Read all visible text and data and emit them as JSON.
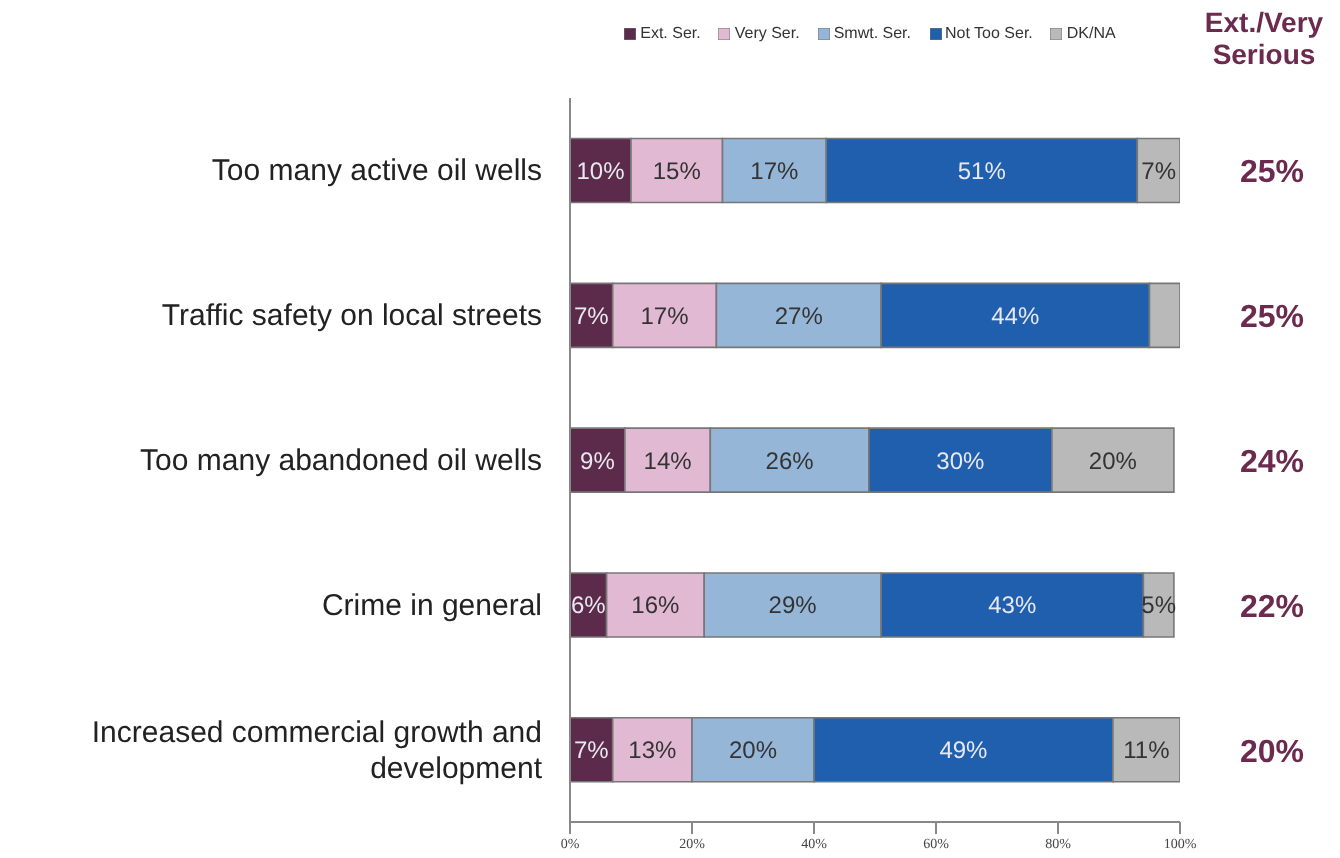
{
  "chart_data": {
    "type": "bar",
    "orientation": "horizontal",
    "stacked": true,
    "legend": "top",
    "grid": false,
    "categories": [
      "Too many active oil wells",
      "Traffic safety on local streets",
      "Too many abandoned oil wells",
      "Crime in general",
      "Increased commercial growth and development"
    ],
    "series": [
      {
        "name": "Ext. Ser.",
        "color": "#5c2a4a",
        "values": [
          10,
          7,
          9,
          6,
          7
        ],
        "value_labels": [
          "10%",
          "7%",
          "9%",
          "6%",
          "7%"
        ]
      },
      {
        "name": "Very Ser.",
        "color": "#e2b9d2",
        "values": [
          15,
          17,
          14,
          16,
          13
        ],
        "value_labels": [
          "15%",
          "17%",
          "14%",
          "16%",
          "13%"
        ]
      },
      {
        "name": "Smwt. Ser.",
        "color": "#96b6d8",
        "values": [
          17,
          27,
          26,
          29,
          20
        ],
        "value_labels": [
          "17%",
          "27%",
          "26%",
          "29%",
          "20%"
        ]
      },
      {
        "name": "Not Too Ser.",
        "color": "#1f5fad",
        "values": [
          51,
          44,
          30,
          43,
          49
        ],
        "value_labels": [
          "51%",
          "44%",
          "30%",
          "43%",
          "49%"
        ]
      },
      {
        "name": "DK/NA",
        "color": "#b9b9b9",
        "values": [
          7,
          5,
          20,
          5,
          11
        ],
        "value_labels": [
          "7%",
          null,
          "20%",
          "5%",
          "11%"
        ]
      }
    ],
    "xlim": [
      0,
      100
    ],
    "xticks": [
      {
        "value": 0,
        "label": "0%"
      },
      {
        "value": 20,
        "label": "20%"
      },
      {
        "value": 40,
        "label": "40%"
      },
      {
        "value": 60,
        "label": "60%"
      },
      {
        "value": 80,
        "label": "80%"
      },
      {
        "value": 100,
        "label": "100%"
      }
    ],
    "annotations": [
      "Ext./Very Serious",
      "25%",
      "25%",
      "24%",
      "22%",
      "20%"
    ]
  }
}
